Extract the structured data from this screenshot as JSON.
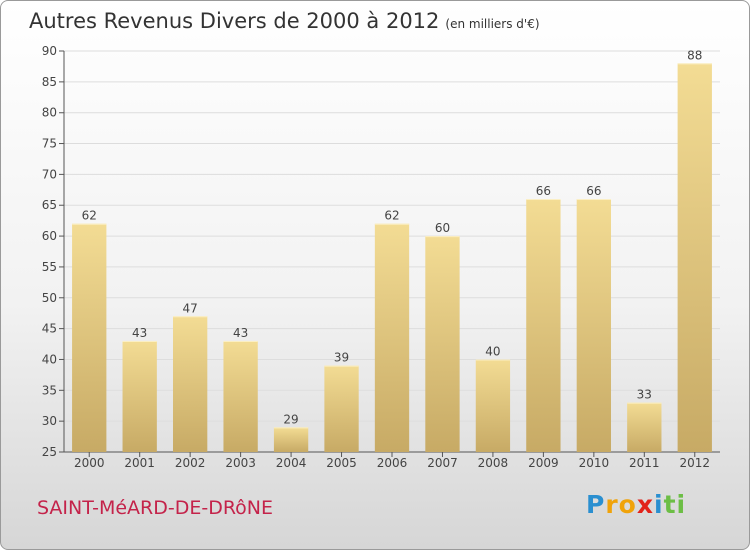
{
  "title": "Autres Revenus Divers de 2000 à 2012",
  "subtitle": "(en milliers d'€)",
  "commune": "SAINT-MéARD-DE-DRôNE",
  "logo": {
    "letters": [
      "P",
      "r",
      "o",
      "x",
      "i",
      "t",
      "i"
    ],
    "colors": [
      "#2a8fd0",
      "#f0a30a",
      "#f0a30a",
      "#e2231a",
      "#2a8fd0",
      "#6cbe45",
      "#6cbe45"
    ]
  },
  "colors": {
    "bar_light": "#f3dc94",
    "bar_dark": "#c7aa65",
    "grid": "#dddddd",
    "axis": "#555555",
    "text": "#444444"
  },
  "chart_data": {
    "type": "bar",
    "categories": [
      "2000",
      "2001",
      "2002",
      "2003",
      "2004",
      "2005",
      "2006",
      "2007",
      "2008",
      "2009",
      "2010",
      "2011",
      "2012"
    ],
    "values": [
      62,
      43,
      47,
      43,
      29,
      39,
      62,
      60,
      40,
      66,
      66,
      33,
      88
    ],
    "ylim": [
      25,
      90
    ],
    "yticks": [
      25,
      30,
      35,
      40,
      45,
      50,
      55,
      60,
      65,
      70,
      75,
      80,
      85,
      90
    ],
    "grid": true,
    "xlabel": "",
    "ylabel": ""
  }
}
